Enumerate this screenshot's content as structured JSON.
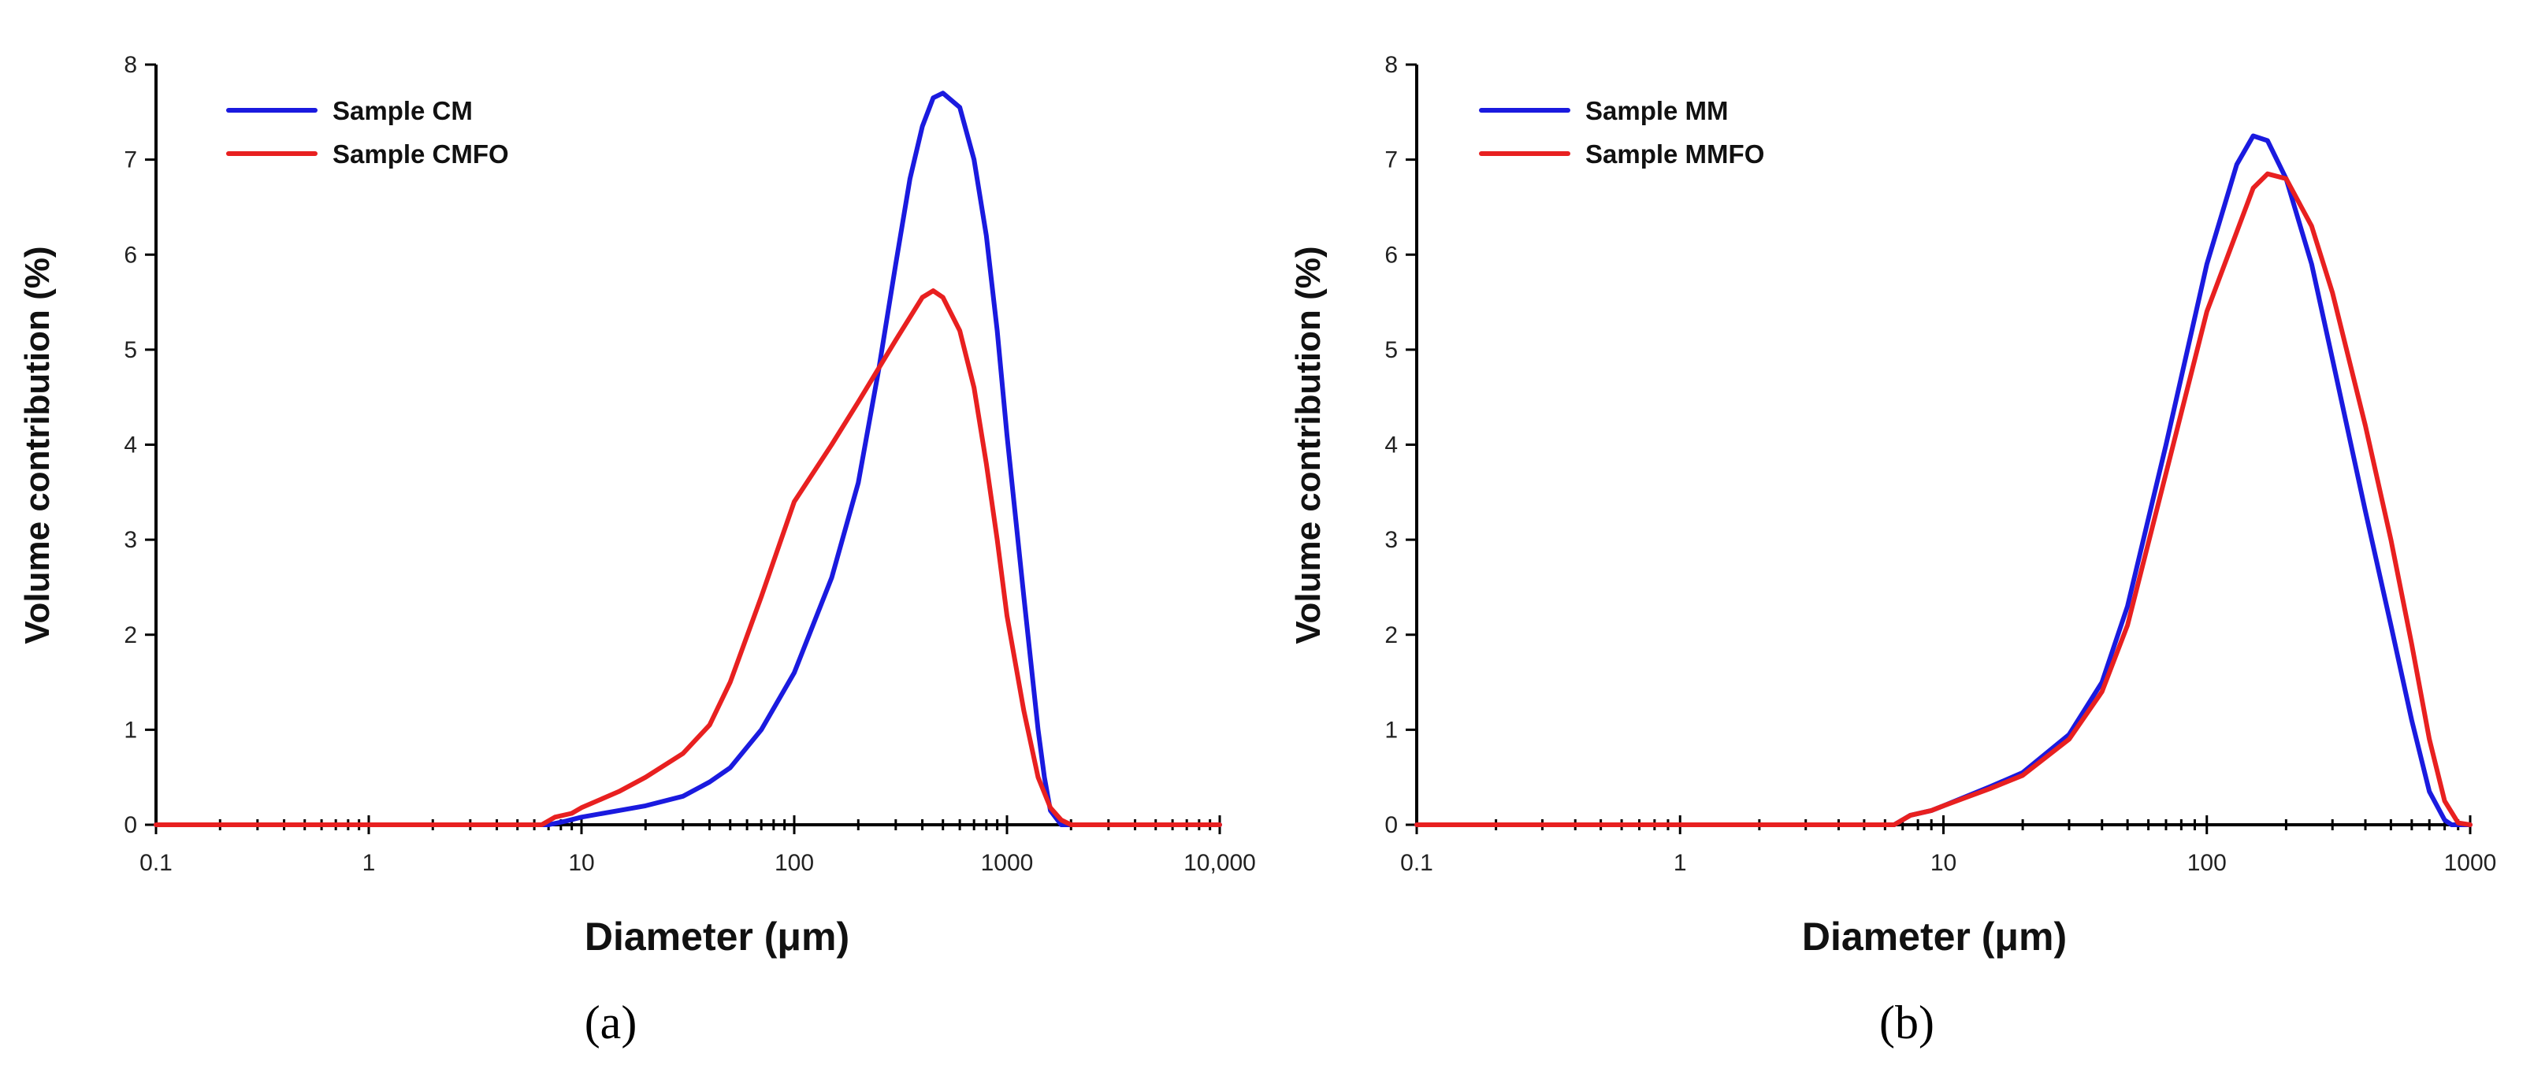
{
  "colors": {
    "blue": "#1a1adf",
    "red": "#e82020"
  },
  "chart_data": [
    {
      "type": "line",
      "panel_label": "(a)",
      "xlabel": "Diameter (μm)",
      "ylabel": "Volume contribution (%)",
      "xscale": "log",
      "xlim": [
        0.1,
        10000
      ],
      "ylim": [
        0,
        8
      ],
      "x_ticks": [
        0.1,
        1,
        10,
        100,
        1000,
        10000
      ],
      "x_tick_labels": [
        "0.1",
        "1",
        "10",
        "100",
        "1000",
        "10,000"
      ],
      "y_ticks": [
        0,
        1,
        2,
        3,
        4,
        5,
        6,
        7,
        8
      ],
      "y_tick_labels": [
        "0",
        "1",
        "2",
        "3",
        "4",
        "5",
        "6",
        "7",
        "8"
      ],
      "grid": false,
      "legend_position": "top-left",
      "series": [
        {
          "name": "Sample CM",
          "color": "#1a1adf",
          "x": [
            0.1,
            7,
            8.5,
            10,
            15,
            20,
            30,
            40,
            50,
            70,
            100,
            150,
            200,
            250,
            300,
            350,
            400,
            450,
            500,
            600,
            700,
            800,
            900,
            1000,
            1200,
            1400,
            1500,
            1600,
            1800,
            10000
          ],
          "y": [
            0,
            0,
            0.04,
            0.08,
            0.15,
            0.2,
            0.3,
            0.45,
            0.6,
            1.0,
            1.6,
            2.6,
            3.6,
            4.8,
            5.9,
            6.8,
            7.35,
            7.65,
            7.7,
            7.55,
            7.0,
            6.2,
            5.2,
            4.1,
            2.4,
            1.0,
            0.5,
            0.15,
            0,
            0
          ]
        },
        {
          "name": "Sample CMFO",
          "color": "#e82020",
          "x": [
            0.1,
            6.5,
            7.5,
            9,
            10,
            15,
            20,
            30,
            40,
            50,
            70,
            100,
            150,
            200,
            300,
            400,
            450,
            500,
            600,
            700,
            800,
            900,
            1000,
            1200,
            1400,
            1600,
            1800,
            2000,
            10000
          ],
          "y": [
            0,
            0,
            0.08,
            0.12,
            0.18,
            0.35,
            0.5,
            0.75,
            1.05,
            1.5,
            2.4,
            3.4,
            4.0,
            4.45,
            5.1,
            5.55,
            5.62,
            5.55,
            5.2,
            4.6,
            3.8,
            3.0,
            2.2,
            1.2,
            0.5,
            0.18,
            0.05,
            0,
            0
          ]
        }
      ]
    },
    {
      "type": "line",
      "panel_label": "(b)",
      "xlabel": "Diameter (μm)",
      "ylabel": "Volume contribution (%)",
      "xscale": "log",
      "xlim": [
        0.1,
        1000
      ],
      "ylim": [
        0,
        8
      ],
      "x_ticks": [
        0.1,
        1,
        10,
        100,
        1000
      ],
      "x_tick_labels": [
        "0.1",
        "1",
        "10",
        "100",
        "1000"
      ],
      "y_ticks": [
        0,
        1,
        2,
        3,
        4,
        5,
        6,
        7,
        8
      ],
      "y_tick_labels": [
        "0",
        "1",
        "2",
        "3",
        "4",
        "5",
        "6",
        "7",
        "8"
      ],
      "grid": false,
      "legend_position": "top-left",
      "series": [
        {
          "name": "Sample MM",
          "color": "#1a1adf",
          "x": [
            0.1,
            6.5,
            7.5,
            9,
            10,
            15,
            20,
            30,
            40,
            50,
            70,
            100,
            130,
            150,
            170,
            200,
            250,
            300,
            400,
            500,
            600,
            700,
            800,
            850,
            1000
          ],
          "y": [
            0,
            0,
            0.1,
            0.15,
            0.2,
            0.4,
            0.55,
            0.95,
            1.5,
            2.3,
            4.0,
            5.9,
            6.95,
            7.25,
            7.2,
            6.8,
            5.9,
            4.9,
            3.3,
            2.1,
            1.1,
            0.35,
            0.05,
            0,
            0
          ]
        },
        {
          "name": "Sample MMFO",
          "color": "#e82020",
          "x": [
            0.1,
            6.5,
            7.5,
            9,
            10,
            15,
            20,
            30,
            40,
            50,
            70,
            100,
            150,
            170,
            200,
            250,
            300,
            400,
            500,
            600,
            700,
            800,
            900,
            1000
          ],
          "y": [
            0,
            0,
            0.1,
            0.15,
            0.2,
            0.38,
            0.52,
            0.9,
            1.4,
            2.1,
            3.7,
            5.4,
            6.7,
            6.85,
            6.8,
            6.3,
            5.6,
            4.2,
            3.0,
            1.9,
            0.9,
            0.25,
            0.02,
            0
          ]
        }
      ]
    }
  ]
}
